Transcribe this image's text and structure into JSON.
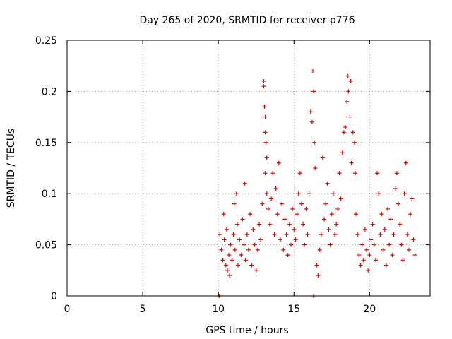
{
  "chart_data": {
    "type": "scatter",
    "title": "Day 265 of 2020, SRMTID for receiver p776",
    "xlabel": "GPS time / hours",
    "ylabel": "SRMTID / TECUs",
    "xlim": [
      0,
      24
    ],
    "ylim": [
      0,
      0.25
    ],
    "xticks": [
      0,
      5,
      10,
      15,
      20
    ],
    "xtick_labels": [
      "0",
      "5",
      "10",
      "15",
      "20"
    ],
    "yticks": [
      0,
      0.05,
      0.1,
      0.15,
      0.2,
      0.25
    ],
    "ytick_labels": [
      "0",
      "0.05",
      "0.1",
      "0.15",
      "0.2",
      "0.25"
    ],
    "grid": true,
    "marker": "+",
    "color": "#e00000",
    "series": [
      {
        "name": "SRMTID",
        "points": [
          [
            10.05,
            0.0
          ],
          [
            16.3,
            0.0
          ],
          [
            10.1,
            0.06
          ],
          [
            10.2,
            0.045
          ],
          [
            10.3,
            0.035
          ],
          [
            10.35,
            0.08
          ],
          [
            10.4,
            0.055
          ],
          [
            10.5,
            0.03
          ],
          [
            10.55,
            0.065
          ],
          [
            10.6,
            0.025
          ],
          [
            10.7,
            0.04
          ],
          [
            10.75,
            0.02
          ],
          [
            10.8,
            0.05
          ],
          [
            10.9,
            0.035
          ],
          [
            11.0,
            0.06
          ],
          [
            11.05,
            0.09
          ],
          [
            11.1,
            0.045
          ],
          [
            11.2,
            0.1
          ],
          [
            11.25,
            0.07
          ],
          [
            11.3,
            0.03
          ],
          [
            11.4,
            0.055
          ],
          [
            11.5,
            0.04
          ],
          [
            11.6,
            0.075
          ],
          [
            11.7,
            0.05
          ],
          [
            11.75,
            0.11
          ],
          [
            11.8,
            0.035
          ],
          [
            11.9,
            0.06
          ],
          [
            12.0,
            0.045
          ],
          [
            12.1,
            0.08
          ],
          [
            12.2,
            0.03
          ],
          [
            12.3,
            0.065
          ],
          [
            12.4,
            0.05
          ],
          [
            12.5,
            0.025
          ],
          [
            12.6,
            0.045
          ],
          [
            12.7,
            0.07
          ],
          [
            12.8,
            0.055
          ],
          [
            12.9,
            0.09
          ],
          [
            13.0,
            0.21
          ],
          [
            13.0,
            0.205
          ],
          [
            13.05,
            0.185
          ],
          [
            13.1,
            0.175
          ],
          [
            13.1,
            0.16
          ],
          [
            13.15,
            0.15
          ],
          [
            13.2,
            0.135
          ],
          [
            13.1,
            0.12
          ],
          [
            13.2,
            0.1
          ],
          [
            13.3,
            0.085
          ],
          [
            13.4,
            0.07
          ],
          [
            13.5,
            0.095
          ],
          [
            13.6,
            0.12
          ],
          [
            13.7,
            0.06
          ],
          [
            13.8,
            0.105
          ],
          [
            13.9,
            0.08
          ],
          [
            14.0,
            0.13
          ],
          [
            14.1,
            0.055
          ],
          [
            14.2,
            0.09
          ],
          [
            14.3,
            0.045
          ],
          [
            14.4,
            0.075
          ],
          [
            14.5,
            0.06
          ],
          [
            14.6,
            0.04
          ],
          [
            14.7,
            0.07
          ],
          [
            14.8,
            0.05
          ],
          [
            14.9,
            0.085
          ],
          [
            15.0,
            0.065
          ],
          [
            15.1,
            0.055
          ],
          [
            15.2,
            0.08
          ],
          [
            15.3,
            0.1
          ],
          [
            15.4,
            0.12
          ],
          [
            15.5,
            0.09
          ],
          [
            15.6,
            0.07
          ],
          [
            15.7,
            0.05
          ],
          [
            15.8,
            0.085
          ],
          [
            15.9,
            0.06
          ],
          [
            16.0,
            0.1
          ],
          [
            16.1,
            0.18
          ],
          [
            16.2,
            0.17
          ],
          [
            16.25,
            0.22
          ],
          [
            16.3,
            0.2
          ],
          [
            16.35,
            0.15
          ],
          [
            16.4,
            0.125
          ],
          [
            16.5,
            0.03
          ],
          [
            16.6,
            0.02
          ],
          [
            16.7,
            0.045
          ],
          [
            16.8,
            0.06
          ],
          [
            16.9,
            0.135
          ],
          [
            17.0,
            0.075
          ],
          [
            17.1,
            0.09
          ],
          [
            17.2,
            0.11
          ],
          [
            17.3,
            0.065
          ],
          [
            17.4,
            0.05
          ],
          [
            17.5,
            0.08
          ],
          [
            17.6,
            0.1
          ],
          [
            17.7,
            0.06
          ],
          [
            17.8,
            0.07
          ],
          [
            17.9,
            0.085
          ],
          [
            18.0,
            0.12
          ],
          [
            18.1,
            0.095
          ],
          [
            18.2,
            0.14
          ],
          [
            18.3,
            0.16
          ],
          [
            18.4,
            0.165
          ],
          [
            18.5,
            0.19
          ],
          [
            18.55,
            0.215
          ],
          [
            18.6,
            0.2
          ],
          [
            18.7,
            0.175
          ],
          [
            18.75,
            0.21
          ],
          [
            18.8,
            0.13
          ],
          [
            18.9,
            0.16
          ],
          [
            19.0,
            0.15
          ],
          [
            19.05,
            0.12
          ],
          [
            19.1,
            0.08
          ],
          [
            19.2,
            0.06
          ],
          [
            19.3,
            0.04
          ],
          [
            19.4,
            0.03
          ],
          [
            19.5,
            0.05
          ],
          [
            19.6,
            0.035
          ],
          [
            19.7,
            0.065
          ],
          [
            19.8,
            0.045
          ],
          [
            19.9,
            0.025
          ],
          [
            20.0,
            0.04
          ],
          [
            20.1,
            0.055
          ],
          [
            20.2,
            0.07
          ],
          [
            20.3,
            0.05
          ],
          [
            20.4,
            0.035
          ],
          [
            20.5,
            0.12
          ],
          [
            20.6,
            0.1
          ],
          [
            20.7,
            0.06
          ],
          [
            20.8,
            0.08
          ],
          [
            20.9,
            0.045
          ],
          [
            21.0,
            0.065
          ],
          [
            21.1,
            0.03
          ],
          [
            21.2,
            0.085
          ],
          [
            21.3,
            0.05
          ],
          [
            21.4,
            0.075
          ],
          [
            21.5,
            0.04
          ],
          [
            21.6,
            0.06
          ],
          [
            21.7,
            0.105
          ],
          [
            21.8,
            0.12
          ],
          [
            21.9,
            0.09
          ],
          [
            22.0,
            0.07
          ],
          [
            22.1,
            0.05
          ],
          [
            22.2,
            0.035
          ],
          [
            22.3,
            0.1
          ],
          [
            22.4,
            0.13
          ],
          [
            22.5,
            0.06
          ],
          [
            22.6,
            0.045
          ],
          [
            22.7,
            0.08
          ],
          [
            22.8,
            0.095
          ],
          [
            22.9,
            0.055
          ],
          [
            23.0,
            0.04
          ]
        ]
      }
    ]
  }
}
